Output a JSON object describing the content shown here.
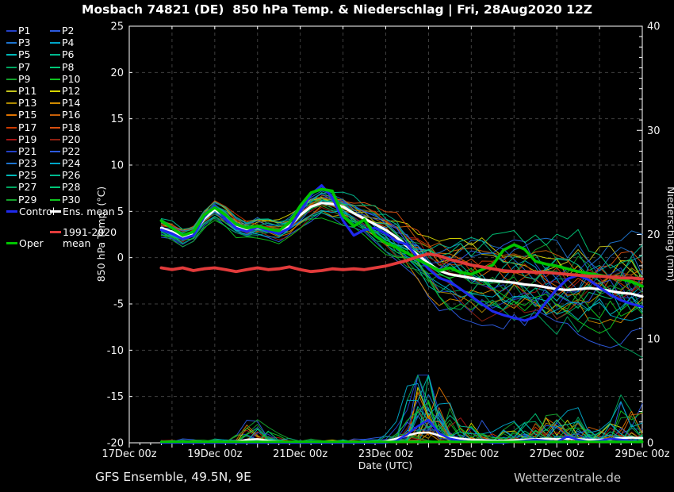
{
  "title": "Mosbach 74821 (DE)  850 hPa Temp. & Niederschlag | Fri, 28Aug2020 12Z",
  "footer": {
    "left": "GFS Ensemble, 49.5N, 9E",
    "right": "Wetterzentrale.de"
  },
  "legend": {
    "members": [
      {
        "label": "P1",
        "color": "#2340c8"
      },
      {
        "label": "P2",
        "color": "#2d5be0"
      },
      {
        "label": "P3",
        "color": "#1d74cf"
      },
      {
        "label": "P4",
        "color": "#00a6c8"
      },
      {
        "label": "P5",
        "color": "#00b8b8"
      },
      {
        "label": "P6",
        "color": "#00b88f"
      },
      {
        "label": "P7",
        "color": "#00a55f"
      },
      {
        "label": "P8",
        "color": "#00c878"
      },
      {
        "label": "P9",
        "color": "#15a02c"
      },
      {
        "label": "P10",
        "color": "#0fc41f"
      },
      {
        "label": "P11",
        "color": "#c3c31c"
      },
      {
        "label": "P12",
        "color": "#d6d600"
      },
      {
        "label": "P13",
        "color": "#ad8800"
      },
      {
        "label": "P14",
        "color": "#d18a00"
      },
      {
        "label": "P15",
        "color": "#e07300"
      },
      {
        "label": "P16",
        "color": "#c86008"
      },
      {
        "label": "P17",
        "color": "#cc3a00"
      },
      {
        "label": "P18",
        "color": "#d94f10"
      },
      {
        "label": "P19",
        "color": "#a51616"
      },
      {
        "label": "P20",
        "color": "#8f2011"
      },
      {
        "label": "P21",
        "color": "#2340c8"
      },
      {
        "label": "P22",
        "color": "#2d5be0"
      },
      {
        "label": "P23",
        "color": "#1d74cf"
      },
      {
        "label": "P24",
        "color": "#00a6c8"
      },
      {
        "label": "P25",
        "color": "#00b8b8"
      },
      {
        "label": "P26",
        "color": "#00b88f"
      },
      {
        "label": "P27",
        "color": "#00a55f"
      },
      {
        "label": "P28",
        "color": "#00c878"
      },
      {
        "label": "P29",
        "color": "#15a02c"
      },
      {
        "label": "P30",
        "color": "#0fc41f"
      }
    ],
    "control": {
      "label": "Control",
      "color": "#1f2aee"
    },
    "ens_mean": {
      "label": "Ens. mean",
      "color": "#ffffff"
    },
    "climate": {
      "label_line1": "1991-2020",
      "label_line2": "mean",
      "color": "#e23b3b"
    },
    "oper": {
      "label": "Oper",
      "color": "#00c400"
    }
  },
  "chart_data": {
    "type": "line",
    "title": "Mosbach 74821 (DE)  850 hPa Temp. & Niederschlag | Fri, 28Aug2020 12Z",
    "xlabel": "Date (UTC)",
    "ylabel_left": "850 hPa Temp. (°C)",
    "ylabel_right": "Niederschlag (mm)",
    "ylim_left": [
      -20,
      25
    ],
    "ylim_right": [
      0,
      40
    ],
    "x_span_days": 12,
    "x_tick_labels": [
      "17Dec 00z",
      "19Dec 00z",
      "21Dec 00z",
      "23Dec 00z",
      "25Dec 00z",
      "27Dec 00z",
      "29Dec 00z"
    ],
    "x_tick_days": [
      0,
      2,
      4,
      6,
      8,
      10,
      12
    ],
    "yticks_left": [
      25,
      20,
      15,
      10,
      5,
      0,
      -5,
      -10,
      -15,
      -20
    ],
    "yticks_right": [
      40,
      30,
      20,
      10,
      0
    ],
    "grid": "dashed, every day vertical, every 5°C horizontal",
    "x_start_day": 0.75,
    "x_step_day": 0.25,
    "n_points": 46,
    "series": {
      "ens_mean": {
        "temp": [
          3.2,
          2.8,
          2.2,
          2.6,
          4.2,
          5.2,
          4.4,
          3.4,
          3.0,
          3.2,
          3.0,
          2.8,
          3.4,
          4.6,
          5.5,
          5.9,
          5.8,
          5.5,
          4.8,
          4.2,
          3.6,
          3.0,
          2.2,
          1.2,
          0.3,
          -0.6,
          -1.4,
          -1.8,
          -2.0,
          -2.2,
          -2.4,
          -2.5,
          -2.6,
          -2.7,
          -2.9,
          -3.0,
          -3.2,
          -3.4,
          -3.5,
          -3.4,
          -3.3,
          -3.4,
          -3.6,
          -3.8,
          -3.9,
          -4.2
        ],
        "precip": [
          0.05,
          0.05,
          0.05,
          0.05,
          0.05,
          0.05,
          0.05,
          0.1,
          0.3,
          0.35,
          0.2,
          0.1,
          0.05,
          0.05,
          0.05,
          0.05,
          0.05,
          0.05,
          0.05,
          0.05,
          0.05,
          0.15,
          0.4,
          0.7,
          0.95,
          1.0,
          0.7,
          0.5,
          0.4,
          0.3,
          0.25,
          0.2,
          0.2,
          0.25,
          0.3,
          0.35,
          0.4,
          0.35,
          0.4,
          0.35,
          0.3,
          0.3,
          0.35,
          0.45,
          0.5,
          0.45
        ]
      },
      "control": {
        "temp": [
          3.0,
          2.6,
          2.0,
          2.4,
          4.4,
          5.6,
          4.2,
          3.2,
          2.8,
          3.3,
          2.9,
          2.6,
          3.2,
          5.0,
          6.8,
          7.8,
          6.5,
          4.0,
          2.4,
          3.0,
          3.2,
          2.6,
          1.8,
          1.4,
          0.0,
          -1.2,
          -2.2,
          -2.6,
          -3.4,
          -4.2,
          -5.0,
          -5.8,
          -6.2,
          -6.5,
          -6.8,
          -6.4,
          -4.8,
          -3.4,
          -2.3,
          -1.9,
          -2.4,
          -3.2,
          -4.0,
          -4.6,
          -5.0,
          -5.3
        ],
        "precip": [
          0,
          0,
          0,
          0,
          0,
          0,
          0,
          0,
          0,
          0,
          0,
          0,
          0,
          0,
          0,
          0,
          0,
          0,
          0,
          0,
          0,
          0,
          0.2,
          0.8,
          1.6,
          2.2,
          0.9,
          0.4,
          0.2,
          0.1,
          0.1,
          0,
          0,
          0.1,
          0.2,
          0.3,
          0.2,
          0.1,
          0.6,
          0.3,
          0.1,
          0.2,
          0.4,
          0.3,
          0.2,
          0.1
        ]
      },
      "oper": {
        "temp": [
          4.0,
          3.2,
          2.4,
          2.8,
          4.6,
          5.4,
          4.6,
          3.6,
          3.2,
          3.4,
          3.1,
          2.9,
          3.8,
          5.6,
          7.0,
          7.4,
          7.2,
          4.5,
          3.4,
          4.1,
          2.4,
          1.6,
          1.1,
          0.5,
          -0.2,
          -0.8,
          -1.4,
          -1.1,
          -1.6,
          -1.8,
          -1.3,
          -0.8,
          0.8,
          1.4,
          0.9,
          -0.4,
          -0.7,
          -0.9,
          -1.2,
          -1.5,
          -1.7,
          -1.9,
          -2.1,
          -2.3,
          -2.6,
          -3.1
        ],
        "precip": [
          0.1,
          0.1,
          0.1,
          0.1,
          0.1,
          0.1,
          0.1,
          0.1,
          0.1,
          0.1,
          0.1,
          0.1,
          0.1,
          0.1,
          0.1,
          0.1,
          0.1,
          0.1,
          0.1,
          0.1,
          0.1,
          0.1,
          0.1,
          0.1,
          0.1,
          0.1,
          0.1,
          0.1,
          0.1,
          0.1,
          0.1,
          0.1,
          0.1,
          0.1,
          0.1,
          0.1,
          0.1,
          0.1,
          0.1,
          0.1,
          0.1,
          0.1,
          0.1,
          0.1,
          0.1,
          0.1
        ]
      },
      "climate_mean_1991_2020": {
        "temp": [
          -1.1,
          -1.3,
          -1.1,
          -1.4,
          -1.2,
          -1.1,
          -1.3,
          -1.5,
          -1.3,
          -1.1,
          -1.3,
          -1.2,
          -1.0,
          -1.3,
          -1.5,
          -1.4,
          -1.2,
          -1.3,
          -1.2,
          -1.3,
          -1.1,
          -0.9,
          -0.6,
          -0.3,
          0.1,
          0.4,
          0.2,
          -0.2,
          -0.5,
          -0.8,
          -1.0,
          -1.2,
          -1.4,
          -1.5,
          -1.5,
          -1.6,
          -1.6,
          -1.7,
          -1.8,
          -1.9,
          -2.0,
          -2.0,
          -2.1,
          -2.2,
          -2.2,
          -2.3
        ]
      }
    },
    "ensemble": {
      "count": 30,
      "seed": 2025,
      "spread": [
        0.7,
        0.7,
        0.7,
        0.7,
        0.8,
        0.8,
        0.8,
        0.8,
        0.8,
        0.9,
        0.9,
        0.9,
        0.9,
        1.0,
        1.1,
        1.2,
        1.2,
        1.3,
        1.3,
        1.4,
        1.5,
        1.6,
        1.8,
        2.0,
        2.2,
        2.4,
        2.6,
        2.8,
        2.9,
        3.0,
        3.1,
        3.2,
        3.3,
        3.4,
        3.5,
        3.5,
        3.6,
        3.6,
        3.7,
        3.7,
        3.8,
        3.8,
        3.9,
        3.9,
        4.0,
        4.0
      ],
      "precip_envelope": [
        0.2,
        0.2,
        0.2,
        0.2,
        0.2,
        0.2,
        0.2,
        0.5,
        1.2,
        1.4,
        0.8,
        0.4,
        0.2,
        0.2,
        0.2,
        0.2,
        0.2,
        0.2,
        0.2,
        0.2,
        0.2,
        0.4,
        1.0,
        2.5,
        4.5,
        6.0,
        4.0,
        3.0,
        2.2,
        1.6,
        1.2,
        1.0,
        0.8,
        1.0,
        1.2,
        1.5,
        1.8,
        1.5,
        1.8,
        1.5,
        1.2,
        1.0,
        1.5,
        2.0,
        2.2,
        1.8
      ]
    }
  }
}
